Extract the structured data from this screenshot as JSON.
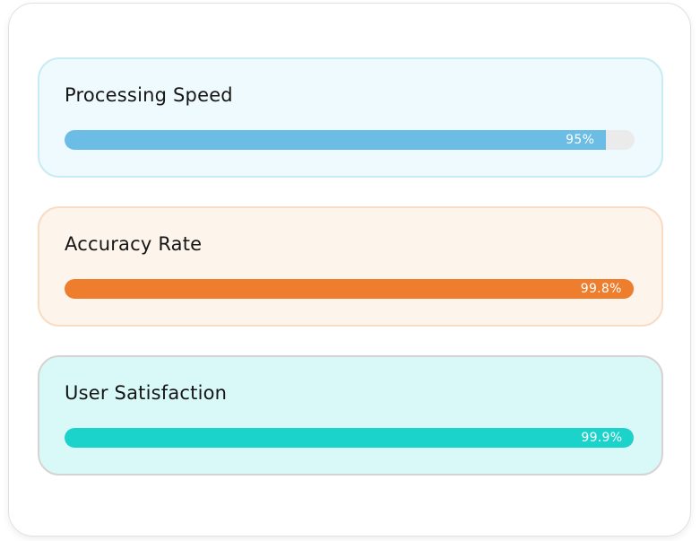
{
  "panel": {
    "name": "performance-metrics-panel"
  },
  "cards": [
    {
      "title": "Processing Speed",
      "value": 95,
      "value_label": "95%",
      "fill_color": "#6cbde6",
      "card_bg": "#eefafd",
      "card_border": "#c9ecf3"
    },
    {
      "title": "Accuracy Rate",
      "value": 99.8,
      "value_label": "99.8%",
      "fill_color": "#ee7e2e",
      "card_bg": "#fdf4ec",
      "card_border": "#f8dcc3"
    },
    {
      "title": "User Satisfaction",
      "value": 99.9,
      "value_label": "99.9%",
      "fill_color": "#1cd3cc",
      "card_bg": "#d9f9f8",
      "card_border": "#d7d3d2"
    }
  ],
  "track_color": "#ebebeb",
  "chart_data": {
    "type": "bar",
    "orientation": "horizontal",
    "categories": [
      "Processing Speed",
      "Accuracy Rate",
      "User Satisfaction"
    ],
    "values": [
      95,
      99.8,
      99.9
    ],
    "value_labels": [
      "95%",
      "99.8%",
      "99.9%"
    ],
    "title": "",
    "xlabel": "",
    "ylabel": "",
    "xlim": [
      0,
      100
    ],
    "grid": false,
    "legend": false,
    "series_colors": [
      "#6cbde6",
      "#ee7e2e",
      "#1cd3cc"
    ]
  }
}
